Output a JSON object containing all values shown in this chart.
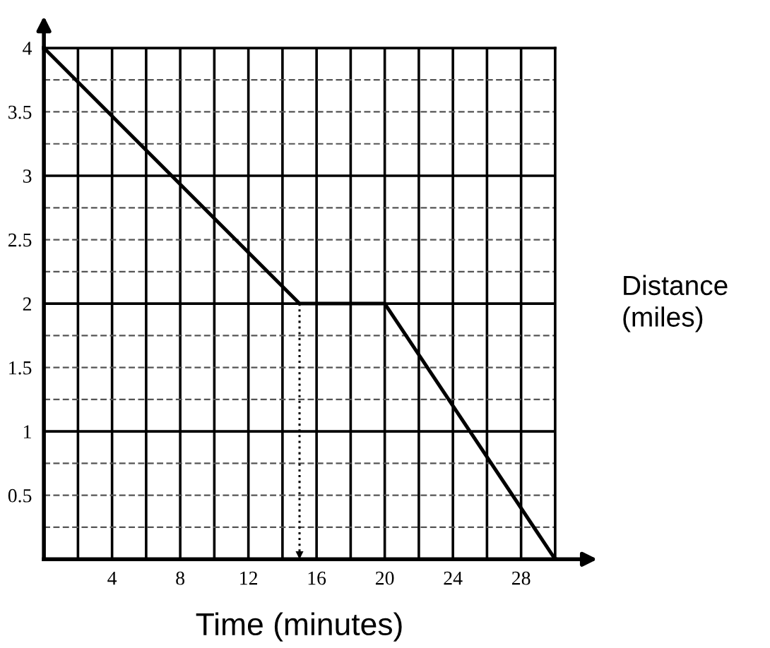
{
  "chart_data": {
    "type": "line",
    "xlabel": "Time (minutes)",
    "ylabel": "Distance\n(miles)",
    "x": [
      0,
      15,
      20,
      30
    ],
    "series": [
      {
        "color": "#000000",
        "values": [
          4,
          2,
          2,
          0
        ]
      },
      {
        "color": "#000000",
        "x": [
          15,
          15
        ],
        "values": [
          2,
          0
        ],
        "line_style": "dotted"
      }
    ],
    "xlim": [
      0,
      30
    ],
    "ylim": [
      0,
      4
    ],
    "xticks": [
      4,
      8,
      12,
      16,
      20,
      24,
      28
    ],
    "yticks": [
      0.5,
      1,
      1.5,
      2,
      2.5,
      3,
      3.5,
      4
    ],
    "grid": true,
    "legend": false,
    "marker": "none",
    "line_style": "solid"
  }
}
